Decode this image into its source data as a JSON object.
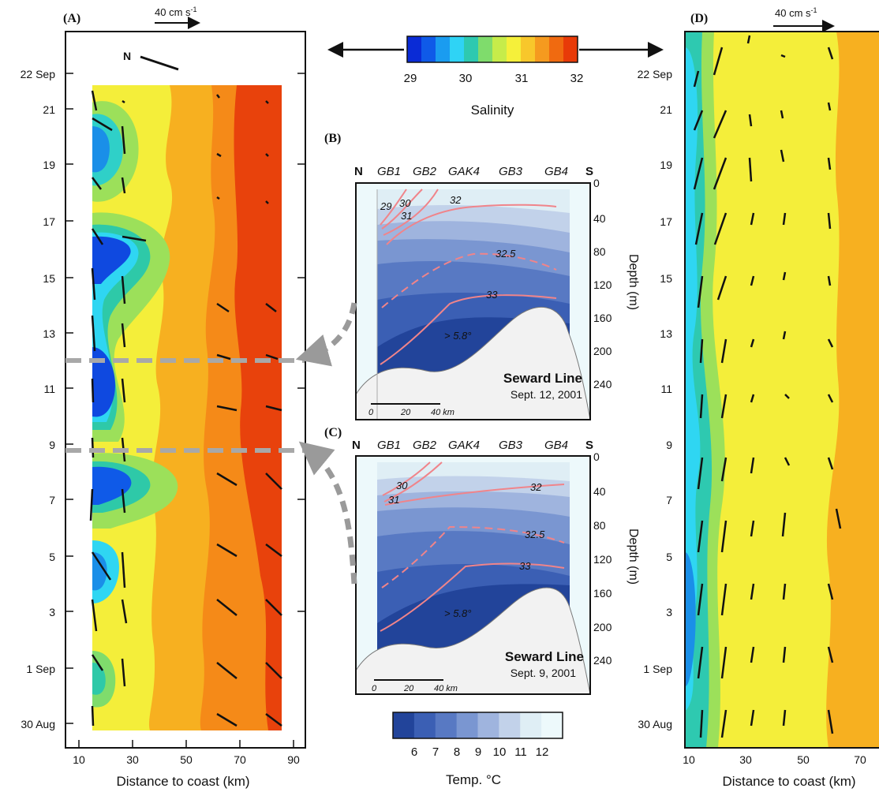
{
  "panel_a": {
    "label": "(A)",
    "scale_label": "40 cm s",
    "scale_sup": "-1",
    "north_label": "N",
    "xlabel": "Distance to coast (km)",
    "xticks": [
      "10",
      "30",
      "50",
      "70",
      "90"
    ],
    "yticks": [
      "22 Sep",
      "21",
      "19",
      "17",
      "15",
      "13",
      "11",
      "9",
      "7",
      "5",
      "3",
      "1 Sep",
      "30 Aug"
    ]
  },
  "panel_b": {
    "label": "(B)",
    "north": "N",
    "south": "S",
    "stations": [
      "GB1",
      "GB2",
      "GAK4",
      "GB3",
      "GB4"
    ],
    "depth_ticks": [
      "0",
      "40",
      "80",
      "120",
      "160",
      "200",
      "240"
    ],
    "depth_label": "Depth (m)",
    "contour_labels": [
      "29",
      "30",
      "31",
      "32",
      "32.5",
      "33"
    ],
    "temp_note": "> 5.8°",
    "title": "Seward Line",
    "date": "Sept. 12, 2001",
    "scale_ticks": [
      "0",
      "20",
      "40 km"
    ]
  },
  "panel_c": {
    "label": "(C)",
    "north": "N",
    "south": "S",
    "stations": [
      "GB1",
      "GB2",
      "GAK4",
      "GB3",
      "GB4"
    ],
    "depth_ticks": [
      "0",
      "40",
      "80",
      "120",
      "160",
      "200",
      "240"
    ],
    "depth_label": "Depth (m)",
    "contour_labels": [
      "30",
      "31",
      "32",
      "32.5",
      "33"
    ],
    "temp_note": "> 5.8°",
    "title": "Seward Line",
    "date": "Sept. 9, 2001",
    "scale_ticks": [
      "0",
      "20",
      "40 km"
    ]
  },
  "panel_d": {
    "label": "(D)",
    "scale_label": "40 cm s",
    "scale_sup": "-1",
    "xlabel": "Distance to coast (km)",
    "xticks": [
      "10",
      "30",
      "50",
      "70"
    ],
    "yticks": [
      "22 Sep",
      "21",
      "19",
      "17",
      "15",
      "13",
      "11",
      "9",
      "7",
      "5",
      "3",
      "1 Sep",
      "30 Aug"
    ]
  },
  "salinity_bar": {
    "title": "Salinity",
    "ticks": [
      "29",
      "30",
      "31",
      "32"
    ],
    "colors": [
      "#0a2bd6",
      "#0f5ae8",
      "#1a9cf0",
      "#2fd3f5",
      "#2ec9b0",
      "#7fdc6c",
      "#c6ec4a",
      "#f5f03a",
      "#f8c72b",
      "#f59a1f",
      "#f06a10",
      "#e83a08"
    ]
  },
  "temp_bar": {
    "title": "Temp.  °C",
    "ticks": [
      "6",
      "7",
      "8",
      "9",
      "10",
      "11",
      "12"
    ],
    "colors": [
      "#22449a",
      "#3b5fb4",
      "#5879c3",
      "#7a96d1",
      "#9fb4de",
      "#c2d2ea",
      "#dfeef5",
      "#edf9fb"
    ]
  }
}
